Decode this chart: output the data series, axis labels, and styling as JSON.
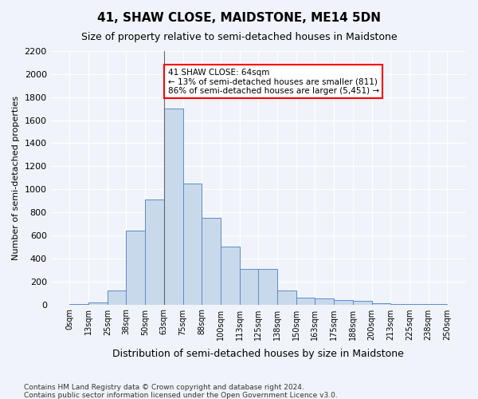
{
  "title": "41, SHAW CLOSE, MAIDSTONE, ME14 5DN",
  "subtitle": "Size of property relative to semi-detached houses in Maidstone",
  "xlabel": "Distribution of semi-detached houses by size in Maidstone",
  "ylabel": "Number of semi-detached properties",
  "footnote1": "Contains HM Land Registry data © Crown copyright and database right 2024.",
  "footnote2": "Contains public sector information licensed under the Open Government Licence v3.0.",
  "property_size": 64,
  "annotation_title": "41 SHAW CLOSE: 64sqm",
  "annotation_line1": "← 13% of semi-detached houses are smaller (811)",
  "annotation_line2": "86% of semi-detached houses are larger (5,451) →",
  "bar_color": "#c9d9ec",
  "bar_edge_color": "#5b8cc8",
  "highlight_bar_color": "#c9d9ec",
  "background_color": "#f0f4fa",
  "bins": [
    0,
    13,
    25,
    38,
    50,
    63,
    75,
    88,
    100,
    113,
    125,
    138,
    150,
    163,
    175,
    188,
    200,
    213,
    225,
    238,
    250
  ],
  "bin_labels": [
    "0sqm",
    "13sqm",
    "25sqm",
    "38sqm",
    "50sqm",
    "63sqm",
    "75sqm",
    "88sqm",
    "100sqm",
    "113sqm",
    "125sqm",
    "138sqm",
    "150sqm",
    "163sqm",
    "175sqm",
    "188sqm",
    "200sqm",
    "213sqm",
    "225sqm",
    "238sqm",
    "250sqm"
  ],
  "counts": [
    5,
    20,
    120,
    640,
    910,
    1700,
    1050,
    750,
    500,
    310,
    310,
    120,
    60,
    50,
    40,
    30,
    10,
    5,
    2,
    1
  ],
  "ylim": [
    0,
    2200
  ],
  "yticks": [
    0,
    200,
    400,
    600,
    800,
    1000,
    1200,
    1400,
    1600,
    1800,
    2000,
    2200
  ]
}
